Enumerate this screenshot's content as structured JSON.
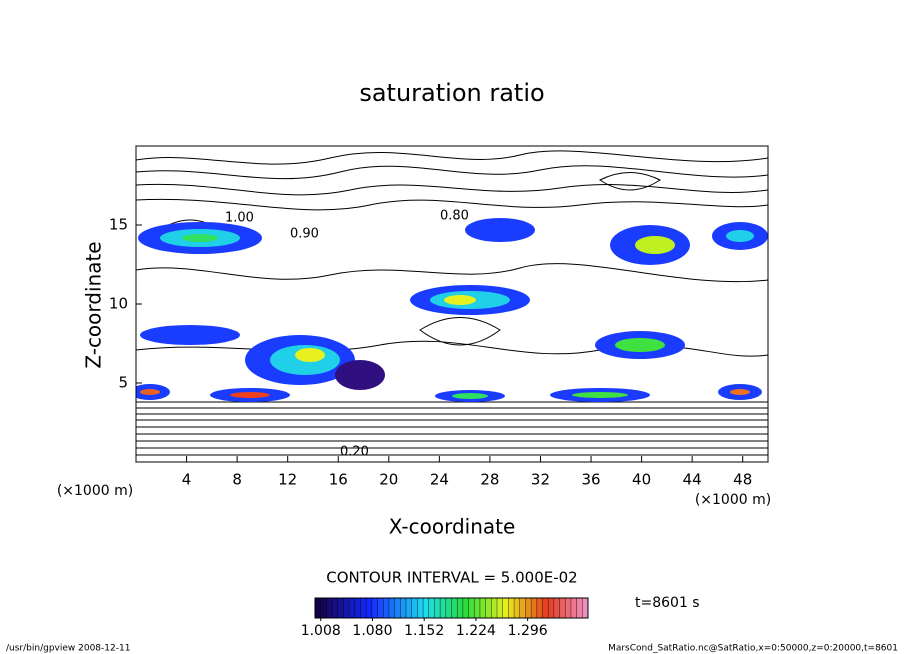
{
  "chart_data": {
    "type": "contour",
    "title": "saturation ratio",
    "x_label": "X-coordinate",
    "y_label": "Z-coordinate",
    "x_unit": "(×1000 m)",
    "y_unit": "(×1000 m)",
    "xlim": [
      0,
      50
    ],
    "xticks": [
      4,
      8,
      12,
      16,
      20,
      24,
      28,
      32,
      36,
      40,
      44,
      48
    ],
    "ylim": [
      0,
      20
    ],
    "yticks": [
      5,
      10,
      15
    ],
    "contour_interval": "CONTOUR INTERVAL = 5.000E-02",
    "contour_labels": [
      "0.80",
      "0.90",
      "1.00",
      "0.20"
    ],
    "colorbar": {
      "lim": [
        1.0,
        1.38
      ],
      "ticks": [
        {
          "value": 1.008,
          "label": "1.008"
        },
        {
          "value": 1.08,
          "label": "1.080"
        },
        {
          "value": 1.152,
          "label": "1.152"
        },
        {
          "value": 1.224,
          "label": "1.224"
        },
        {
          "value": 1.296,
          "label": "1.296"
        }
      ]
    },
    "time_label": "t=8601 s",
    "footer_left": "/usr/bin/gpview   2008-12-11",
    "footer_right": "MarsCond_SatRatio.nc@SatRatio,x=0:50000,z=0:20000,t=8601"
  }
}
